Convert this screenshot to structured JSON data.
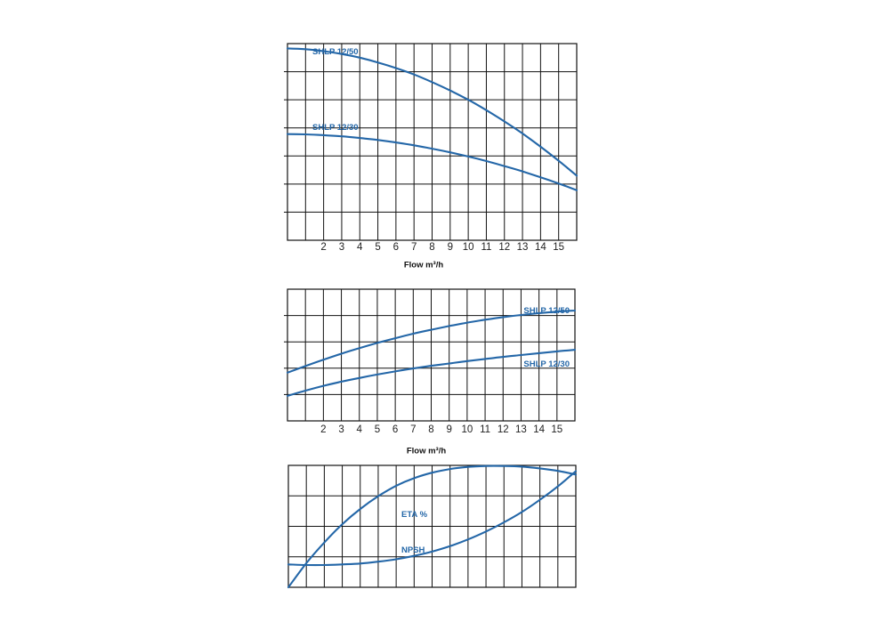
{
  "colors": {
    "curve": "#2467a8",
    "grid": "#111111",
    "text": "#222222"
  },
  "chart_data": [
    {
      "type": "line",
      "title": "",
      "xlabel": "Flow m³/h",
      "ylabel": "",
      "xlim": [
        0,
        16
      ],
      "x_ticks": [
        2,
        3,
        4,
        5,
        6,
        7,
        8,
        9,
        10,
        11,
        12,
        13,
        14,
        15
      ],
      "grid": true,
      "series": [
        {
          "name": "SHLP 12/50",
          "x": [
            0,
            1,
            2,
            3,
            4,
            5,
            6,
            7,
            8,
            9,
            10,
            11,
            12,
            13,
            14,
            15,
            16
          ],
          "y": [
            6.83,
            6.8,
            6.73,
            6.63,
            6.5,
            6.33,
            6.13,
            5.9,
            5.63,
            5.33,
            5.0,
            4.63,
            4.23,
            3.8,
            3.33,
            2.83,
            2.3
          ]
        },
        {
          "name": "SHLP 12/30",
          "x": [
            0,
            1,
            2,
            3,
            4,
            5,
            6,
            7,
            8,
            9,
            10,
            11,
            12,
            13,
            14,
            15,
            16
          ],
          "y": [
            3.78,
            3.77,
            3.74,
            3.7,
            3.64,
            3.57,
            3.48,
            3.38,
            3.26,
            3.13,
            2.98,
            2.82,
            2.64,
            2.45,
            2.24,
            2.02,
            1.78
          ]
        }
      ]
    },
    {
      "type": "line",
      "title": "",
      "xlabel": "Flow m³/h",
      "ylabel": "",
      "xlim": [
        0,
        16
      ],
      "x_ticks": [
        2,
        3,
        4,
        5,
        6,
        7,
        8,
        9,
        10,
        11,
        12,
        13,
        14,
        15
      ],
      "grid": true,
      "series": [
        {
          "name": "SHLP 12/50",
          "x": [
            0,
            1,
            2,
            3,
            4,
            5,
            6,
            7,
            8,
            9,
            10,
            11,
            12,
            13,
            14,
            15,
            16
          ],
          "y": [
            1.83,
            2.08,
            2.32,
            2.55,
            2.76,
            2.96,
            3.14,
            3.31,
            3.46,
            3.6,
            3.73,
            3.84,
            3.94,
            4.02,
            4.09,
            4.15,
            4.19
          ]
        },
        {
          "name": "SHLP 12/30",
          "x": [
            0,
            1,
            2,
            3,
            4,
            5,
            6,
            7,
            8,
            9,
            10,
            11,
            12,
            13,
            14,
            15,
            16
          ],
          "y": [
            0.95,
            1.15,
            1.33,
            1.49,
            1.63,
            1.76,
            1.88,
            1.99,
            2.09,
            2.18,
            2.27,
            2.35,
            2.43,
            2.5,
            2.57,
            2.64,
            2.7
          ]
        }
      ]
    },
    {
      "type": "line",
      "title": "",
      "xlabel": "",
      "ylabel": "",
      "xlim": [
        0,
        16
      ],
      "grid": true,
      "series": [
        {
          "name": "ETA %",
          "x": [
            0,
            1,
            2,
            3,
            4,
            5,
            6,
            7,
            8,
            9,
            10,
            11,
            12,
            13,
            14,
            15,
            16
          ],
          "y": [
            0,
            0.79,
            1.47,
            2.07,
            2.57,
            2.99,
            3.33,
            3.58,
            3.76,
            3.88,
            3.95,
            3.98,
            3.98,
            3.96,
            3.9,
            3.82,
            3.7
          ]
        },
        {
          "name": "NPSH",
          "x": [
            0,
            1,
            2,
            3,
            4,
            5,
            6,
            7,
            8,
            9,
            10,
            11,
            12,
            13,
            14,
            15,
            16
          ],
          "y": [
            0.75,
            0.73,
            0.73,
            0.75,
            0.78,
            0.84,
            0.92,
            1.03,
            1.17,
            1.35,
            1.57,
            1.83,
            2.13,
            2.47,
            2.87,
            3.31,
            3.81
          ]
        }
      ]
    }
  ]
}
